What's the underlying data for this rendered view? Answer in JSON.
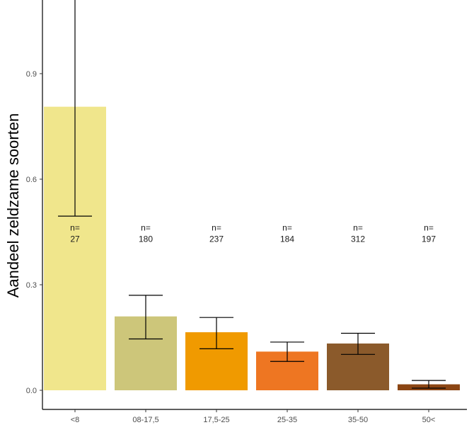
{
  "chart_data": {
    "type": "bar",
    "ylabel": "Aandeel zeldzame soorten",
    "xlabel": "",
    "categories": [
      "<8",
      "08-17,5",
      "17,5-25",
      "25-35",
      "35-50",
      "50<"
    ],
    "values": [
      0.806,
      0.21,
      0.165,
      0.11,
      0.133,
      0.017
    ],
    "error_low": [
      0.495,
      0.146,
      0.118,
      0.082,
      0.102,
      0.006
    ],
    "error_high": [
      1.12,
      0.27,
      0.207,
      0.137,
      0.162,
      0.028
    ],
    "n_prefix": "n=",
    "n_values": [
      "27",
      "180",
      "237",
      "184",
      "312",
      "197"
    ],
    "colors": [
      "#f0e68c",
      "#cdc67a",
      "#f09a00",
      "#ee7622",
      "#8b5a2b",
      "#8b4513"
    ],
    "yticks": [
      "0.0",
      "0.3",
      "0.6",
      "0.9"
    ],
    "ytick_values": [
      0.0,
      0.3,
      0.6,
      0.9
    ],
    "ylim": [
      -0.055,
      1.115
    ],
    "n_label_level": 0.43,
    "grid": false,
    "legend": "none"
  }
}
